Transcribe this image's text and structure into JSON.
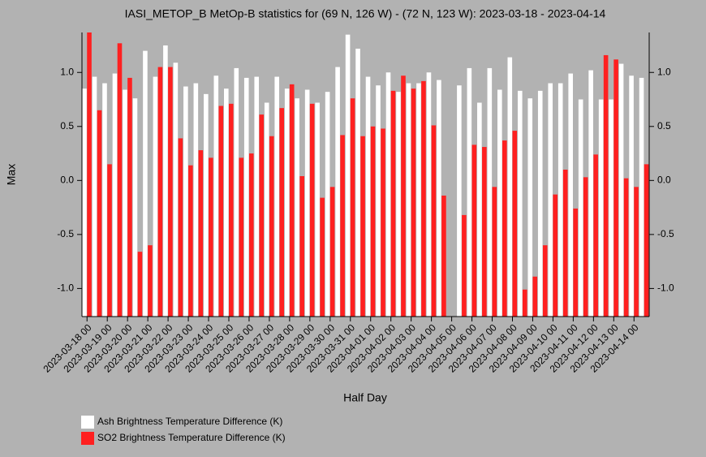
{
  "chart_data": {
    "type": "bar",
    "title": "IASI_METOP_B MetOp-B statistics for (69 N, 126 W) - (72 N, 123 W): 2023-03-18 - 2023-04-14",
    "x_label": "Half Day",
    "y_label": "Max",
    "categories": [
      "2023-03-18 00",
      null,
      "2023-03-19 00",
      null,
      "2023-03-20 00",
      null,
      "2023-03-21 00",
      null,
      "2023-03-22 00",
      null,
      "2023-03-23 00",
      null,
      "2023-03-24 00",
      null,
      "2023-03-25 00",
      null,
      "2023-03-26 00",
      null,
      "2023-03-27 00",
      null,
      "2023-03-28 00",
      null,
      "2023-03-29 00",
      null,
      "2023-03-30 00",
      null,
      "2023-03-31 00",
      null,
      "2023-04-01 00",
      null,
      "2023-04-02 00",
      null,
      "2023-04-03 00",
      null,
      "2023-04-04 00",
      null,
      "2023-04-05 00",
      null,
      "2023-04-06 00",
      null,
      "2023-04-07 00",
      null,
      "2023-04-08 00",
      null,
      "2023-04-09 00",
      null,
      "2023-04-10 00",
      null,
      "2023-04-11 00",
      null,
      "2023-04-12 00",
      null,
      "2023-04-13 00",
      null,
      "2023-04-14 00",
      null
    ],
    "series": [
      {
        "name": "Ash Brightness Temperature Difference (K)",
        "color": "#ffffff",
        "values": [
          0.85,
          0.96,
          0.9,
          0.99,
          0.84,
          0.76,
          1.2,
          0.96,
          1.25,
          1.09,
          0.87,
          0.9,
          0.8,
          0.97,
          0.85,
          1.04,
          0.95,
          0.96,
          0.72,
          0.96,
          0.85,
          0.76,
          0.84,
          0.72,
          0.82,
          1.05,
          1.35,
          1.22,
          0.96,
          0.88,
          1.0,
          0.82,
          0.9,
          0.9,
          1.0,
          0.93,
          null,
          0.88,
          1.04,
          0.72,
          1.04,
          0.84,
          1.14,
          0.83,
          0.76,
          0.83,
          0.9,
          0.9,
          0.99,
          0.75,
          1.02,
          0.75,
          0.75,
          1.08,
          0.97,
          0.95
        ]
      },
      {
        "name": "SO2 Brightness Temperature Difference (K)",
        "color": "#ff2020",
        "values": [
          1.37,
          0.65,
          0.15,
          1.27,
          0.95,
          -0.66,
          -0.6,
          1.05,
          1.05,
          0.39,
          0.14,
          0.28,
          0.21,
          0.69,
          0.71,
          0.21,
          0.25,
          0.61,
          0.41,
          0.67,
          0.89,
          0.04,
          0.71,
          -0.16,
          -0.06,
          0.42,
          0.76,
          0.41,
          0.5,
          0.48,
          0.83,
          0.97,
          0.85,
          0.92,
          0.51,
          -0.14,
          null,
          -0.32,
          0.33,
          0.31,
          -0.06,
          0.37,
          0.46,
          -1.01,
          -0.89,
          -0.6,
          -0.13,
          0.1,
          -0.26,
          0.03,
          0.24,
          1.16,
          1.12,
          0.02,
          -0.06,
          0.15
        ]
      }
    ],
    "ylim": [
      -1.26,
      1.37
    ],
    "yticks": [
      {
        "value": -1.0,
        "label": "-1.0"
      },
      {
        "value": -0.5,
        "label": "-0.5"
      },
      {
        "value": 0.0,
        "label": "0.0"
      },
      {
        "value": 0.5,
        "label": "0.5"
      },
      {
        "value": 1.0,
        "label": "1.0"
      }
    ]
  }
}
